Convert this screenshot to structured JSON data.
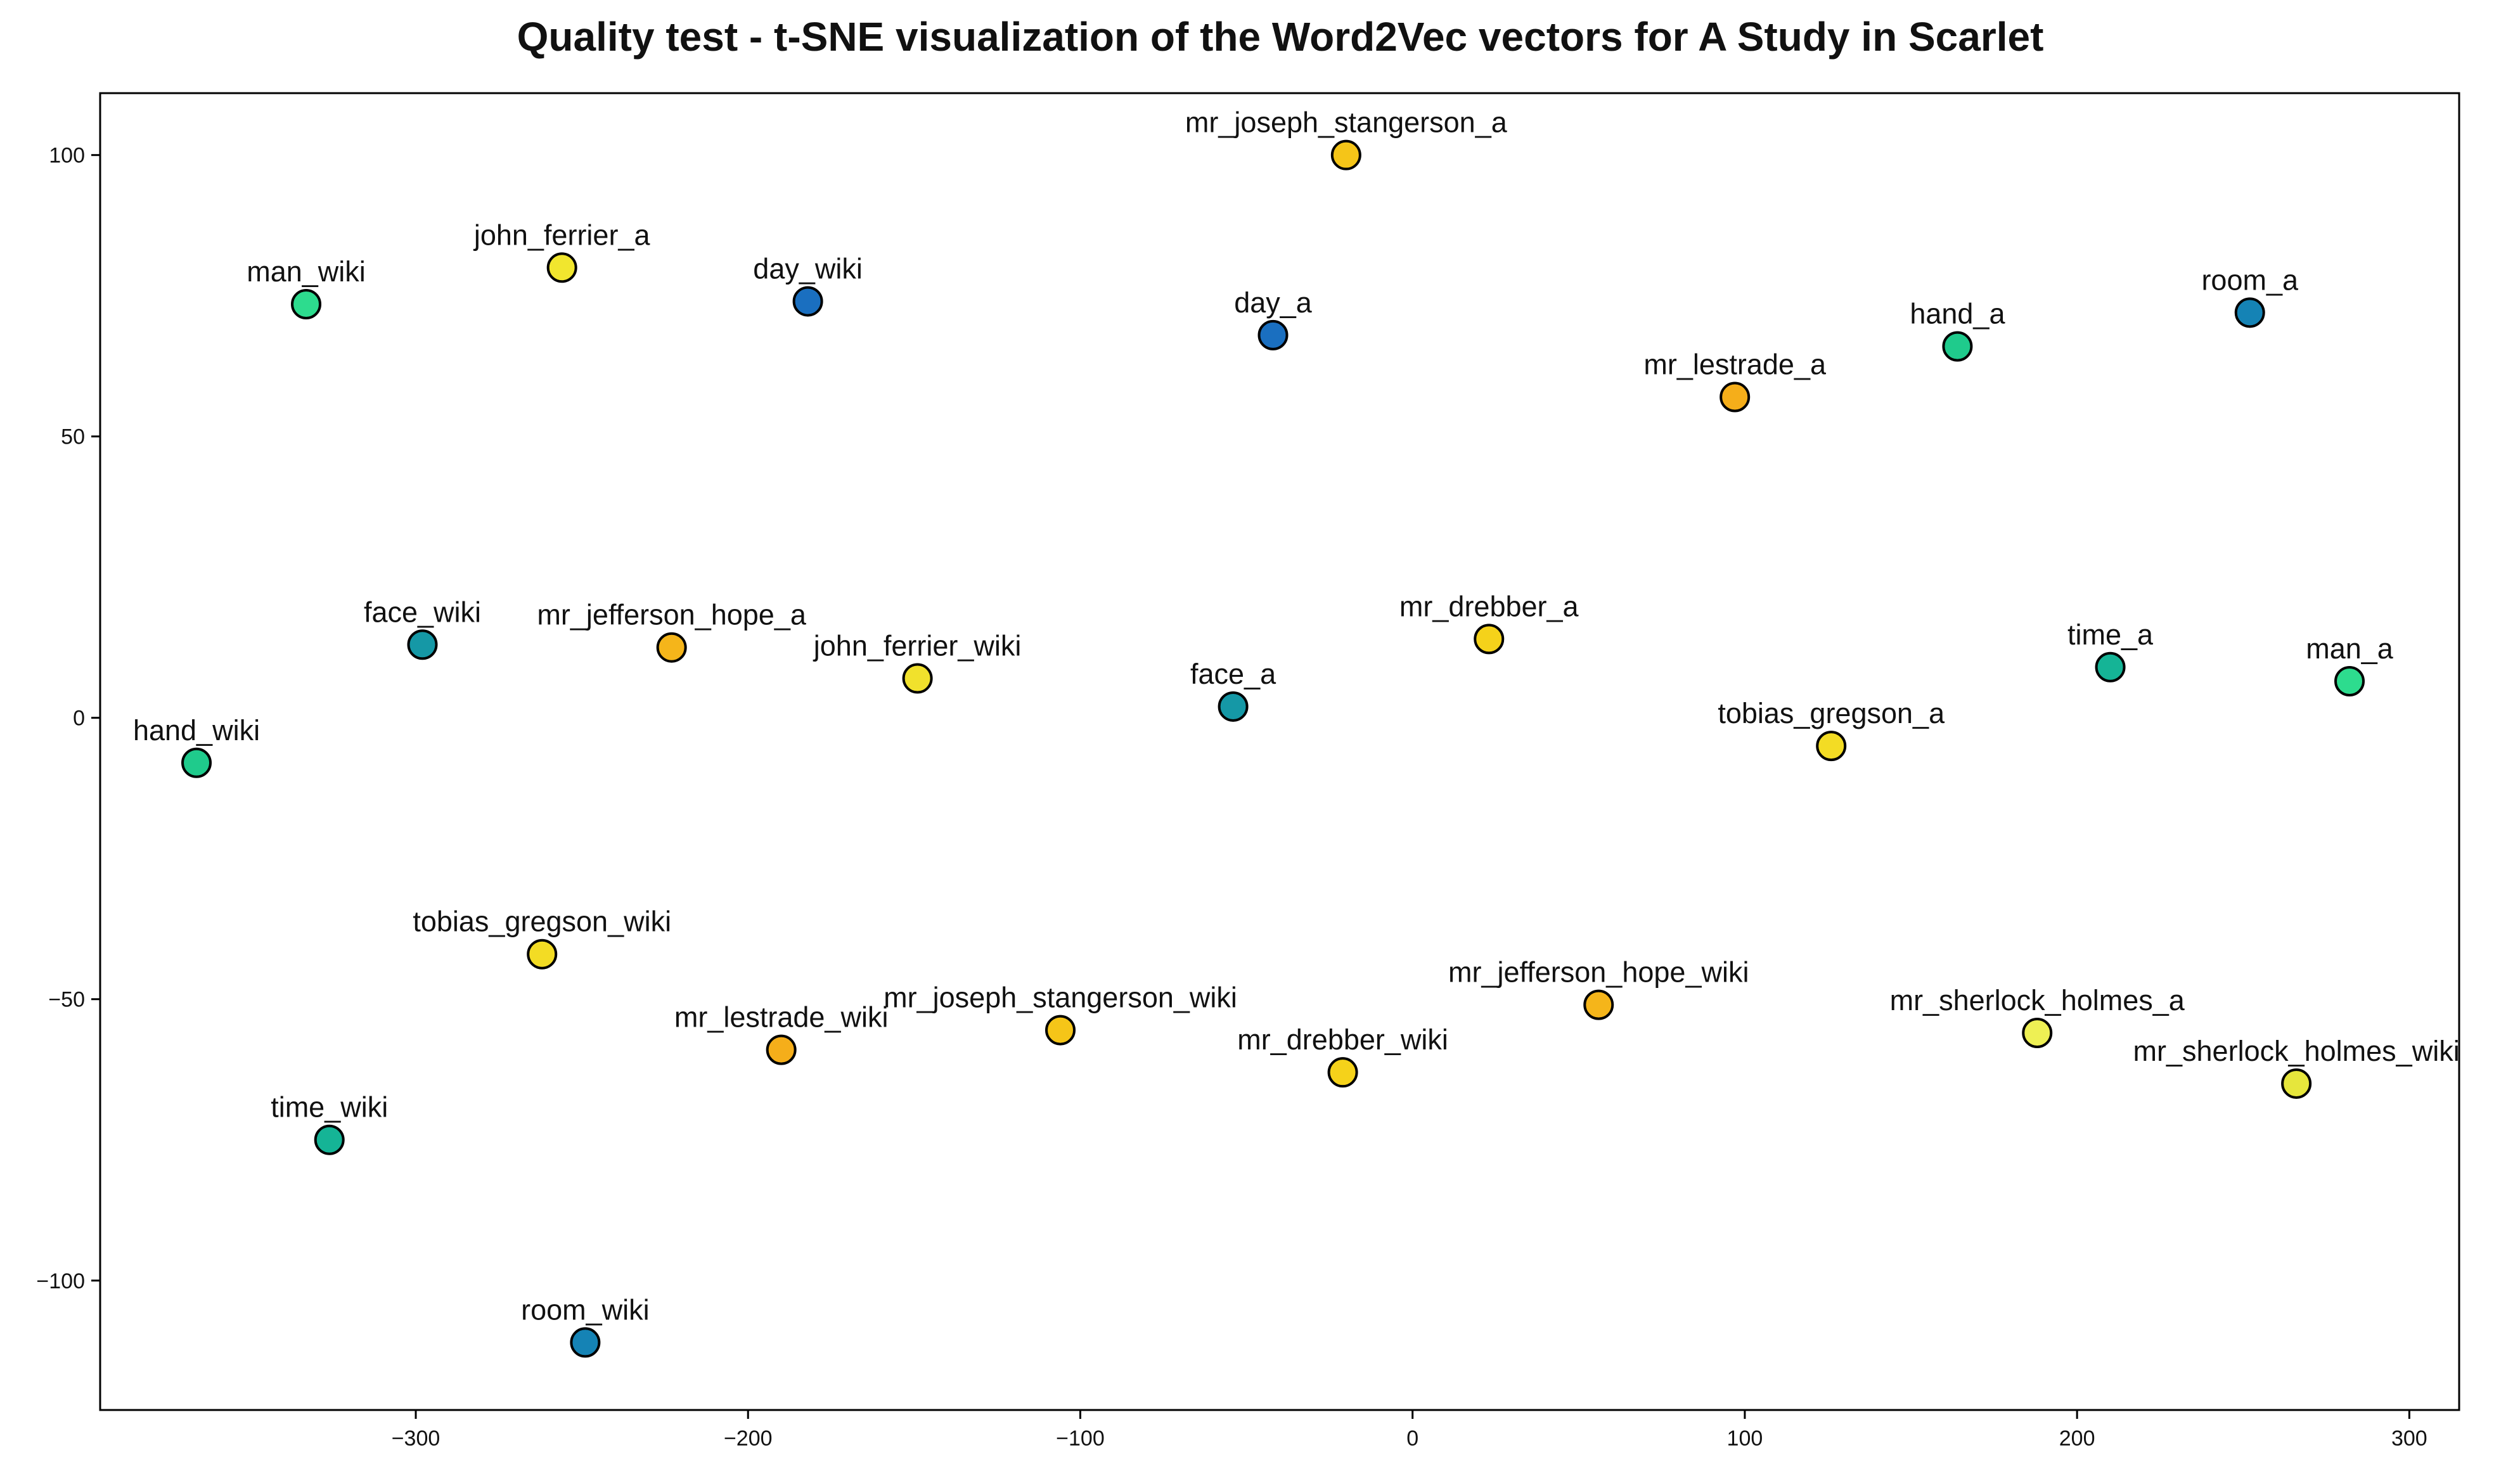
{
  "chart_data": {
    "type": "scatter",
    "title": "Quality test - t-SNE visualization of the Word2Vec vectors for A Study in Scarlet",
    "xlabel": "",
    "ylabel": "",
    "xlim": [
      -395,
      315
    ],
    "ylim": [
      -123,
      111
    ],
    "xticks": [
      -300,
      -200,
      -100,
      0,
      100,
      200,
      300
    ],
    "yticks": [
      100,
      50,
      0,
      -50,
      -100
    ],
    "xtick_labels": [
      "−300",
      "−200",
      "−100",
      "0",
      "100",
      "200",
      "300"
    ],
    "ytick_labels": [
      "100",
      "50",
      "0",
      "−50",
      "−100"
    ],
    "grid": false,
    "legend": "none",
    "points": [
      {
        "label": "mr_joseph_stangerson_a",
        "x": -20,
        "y": 100,
        "color": "#f5c518"
      },
      {
        "label": "john_ferrier_a",
        "x": -256,
        "y": 80,
        "color": "#f1e62e"
      },
      {
        "label": "man_wiki",
        "x": -333,
        "y": 73.5,
        "color": "#2ddc8e"
      },
      {
        "label": "day_wiki",
        "x": -182,
        "y": 74,
        "color": "#1a6fc0"
      },
      {
        "label": "day_a",
        "x": -42,
        "y": 68,
        "color": "#1a6fc0"
      },
      {
        "label": "room_a",
        "x": 252,
        "y": 72,
        "color": "#1583b5"
      },
      {
        "label": "hand_a",
        "x": 164,
        "y": 66,
        "color": "#1fcb8c"
      },
      {
        "label": "mr_lestrade_a",
        "x": 97,
        "y": 57,
        "color": "#f5ae1a"
      },
      {
        "label": "face_wiki",
        "x": -298,
        "y": 13,
        "color": "#1598a6"
      },
      {
        "label": "mr_jefferson_hope_a",
        "x": -223,
        "y": 12.5,
        "color": "#f5b51a"
      },
      {
        "label": "john_ferrier_wiki",
        "x": -149,
        "y": 7,
        "color": "#f1e12c"
      },
      {
        "label": "face_a",
        "x": -54,
        "y": 2,
        "color": "#1598a6"
      },
      {
        "label": "mr_drebber_a",
        "x": 23,
        "y": 14,
        "color": "#f5d21a"
      },
      {
        "label": "time_a",
        "x": 210,
        "y": 9,
        "color": "#15b496"
      },
      {
        "label": "man_a",
        "x": 282,
        "y": 6.5,
        "color": "#2ddc8e"
      },
      {
        "label": "hand_wiki",
        "x": -366,
        "y": -8,
        "color": "#1fcb8c"
      },
      {
        "label": "tobias_gregson_a",
        "x": 126,
        "y": -5,
        "color": "#f3dc24"
      },
      {
        "label": "tobias_gregson_wiki",
        "x": -262,
        "y": -42,
        "color": "#f3dc24"
      },
      {
        "label": "mr_lestrade_wiki",
        "x": -190,
        "y": -59,
        "color": "#f5ae1a"
      },
      {
        "label": "mr_joseph_stangerson_wiki",
        "x": -106,
        "y": -55.5,
        "color": "#f5c518"
      },
      {
        "label": "mr_drebber_wiki",
        "x": -21,
        "y": -63,
        "color": "#f5d21a"
      },
      {
        "label": "mr_jefferson_hope_wiki",
        "x": 56,
        "y": -51,
        "color": "#f5b51a"
      },
      {
        "label": "mr_sherlock_holmes_a",
        "x": 188,
        "y": -56,
        "color": "#eef054"
      },
      {
        "label": "mr_sherlock_holmes_wiki",
        "x": 266,
        "y": -65,
        "color": "#e6e63c"
      },
      {
        "label": "time_wiki",
        "x": -326,
        "y": -75,
        "color": "#15b496"
      },
      {
        "label": "room_wiki",
        "x": -249,
        "y": -111,
        "color": "#1583b5"
      }
    ]
  }
}
